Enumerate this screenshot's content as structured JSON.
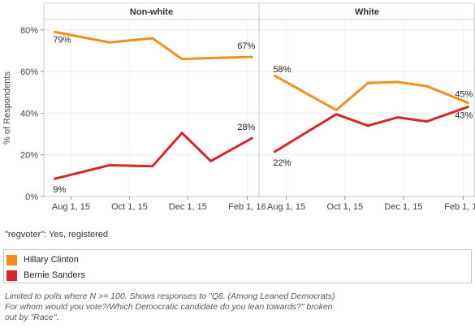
{
  "chart_data": {
    "type": "line",
    "ylabel": "% of Respondents",
    "y_ticks": [
      "0%",
      "20%",
      "40%",
      "60%",
      "80%"
    ],
    "ylim": [
      0,
      85
    ],
    "x_ticks": [
      "Aug 1, 15",
      "Oct 1, 15",
      "Dec 1, 15",
      "Feb 1, 16"
    ],
    "x_domain": [
      "2015-07-07",
      "2016-02-10"
    ],
    "colors": {
      "hillary": "#f28e1c",
      "bernie": "#d62728"
    },
    "panels": [
      {
        "title": "Non-white",
        "series": [
          {
            "name": "Hillary Clinton",
            "color": "#f28e1c",
            "x": [
              "2015-07-15",
              "2015-09-10",
              "2015-10-25",
              "2015-11-25",
              "2015-12-25",
              "2016-02-06"
            ],
            "y": [
              79,
              74,
              76,
              66,
              66.5,
              67
            ],
            "start_label": "79%",
            "end_label": "67%"
          },
          {
            "name": "Bernie Sanders",
            "color": "#d62728",
            "x": [
              "2015-07-15",
              "2015-09-10",
              "2015-10-25",
              "2015-11-25",
              "2015-12-25",
              "2016-02-06"
            ],
            "y": [
              8.5,
              15,
              14.5,
              30.5,
              17,
              28
            ],
            "start_label": "9%",
            "end_label": "28%"
          }
        ]
      },
      {
        "title": "White",
        "series": [
          {
            "name": "Hillary Clinton",
            "color": "#f28e1c",
            "x": [
              "2015-07-20",
              "2015-09-22",
              "2015-10-25",
              "2015-11-25",
              "2015-12-25",
              "2016-02-06"
            ],
            "y": [
              58,
              41.5,
              54.5,
              55,
              53,
              45
            ],
            "start_label": "58%",
            "end_label": "45%"
          },
          {
            "name": "Bernie Sanders",
            "color": "#d62728",
            "x": [
              "2015-07-20",
              "2015-09-22",
              "2015-10-25",
              "2015-11-25",
              "2015-12-25",
              "2016-02-06"
            ],
            "y": [
              21.5,
              39.5,
              34,
              38,
              36,
              43
            ],
            "start_label": "22%",
            "end_label": "43%"
          }
        ]
      }
    ]
  },
  "filter_text": "\"regvoter\": Yes, registered",
  "legend": [
    {
      "label": "Hillary Clinton",
      "color": "#f28e1c"
    },
    {
      "label": "Bernie Sanders",
      "color": "#d62728"
    }
  ],
  "caption": "Limited to polls where N >= 100. Shows responses to \"Q8. (Among Leaned Democrats) For whom would you vote?/Which Democratic candidate do you lean towards?\" broken out by \"Race\"."
}
